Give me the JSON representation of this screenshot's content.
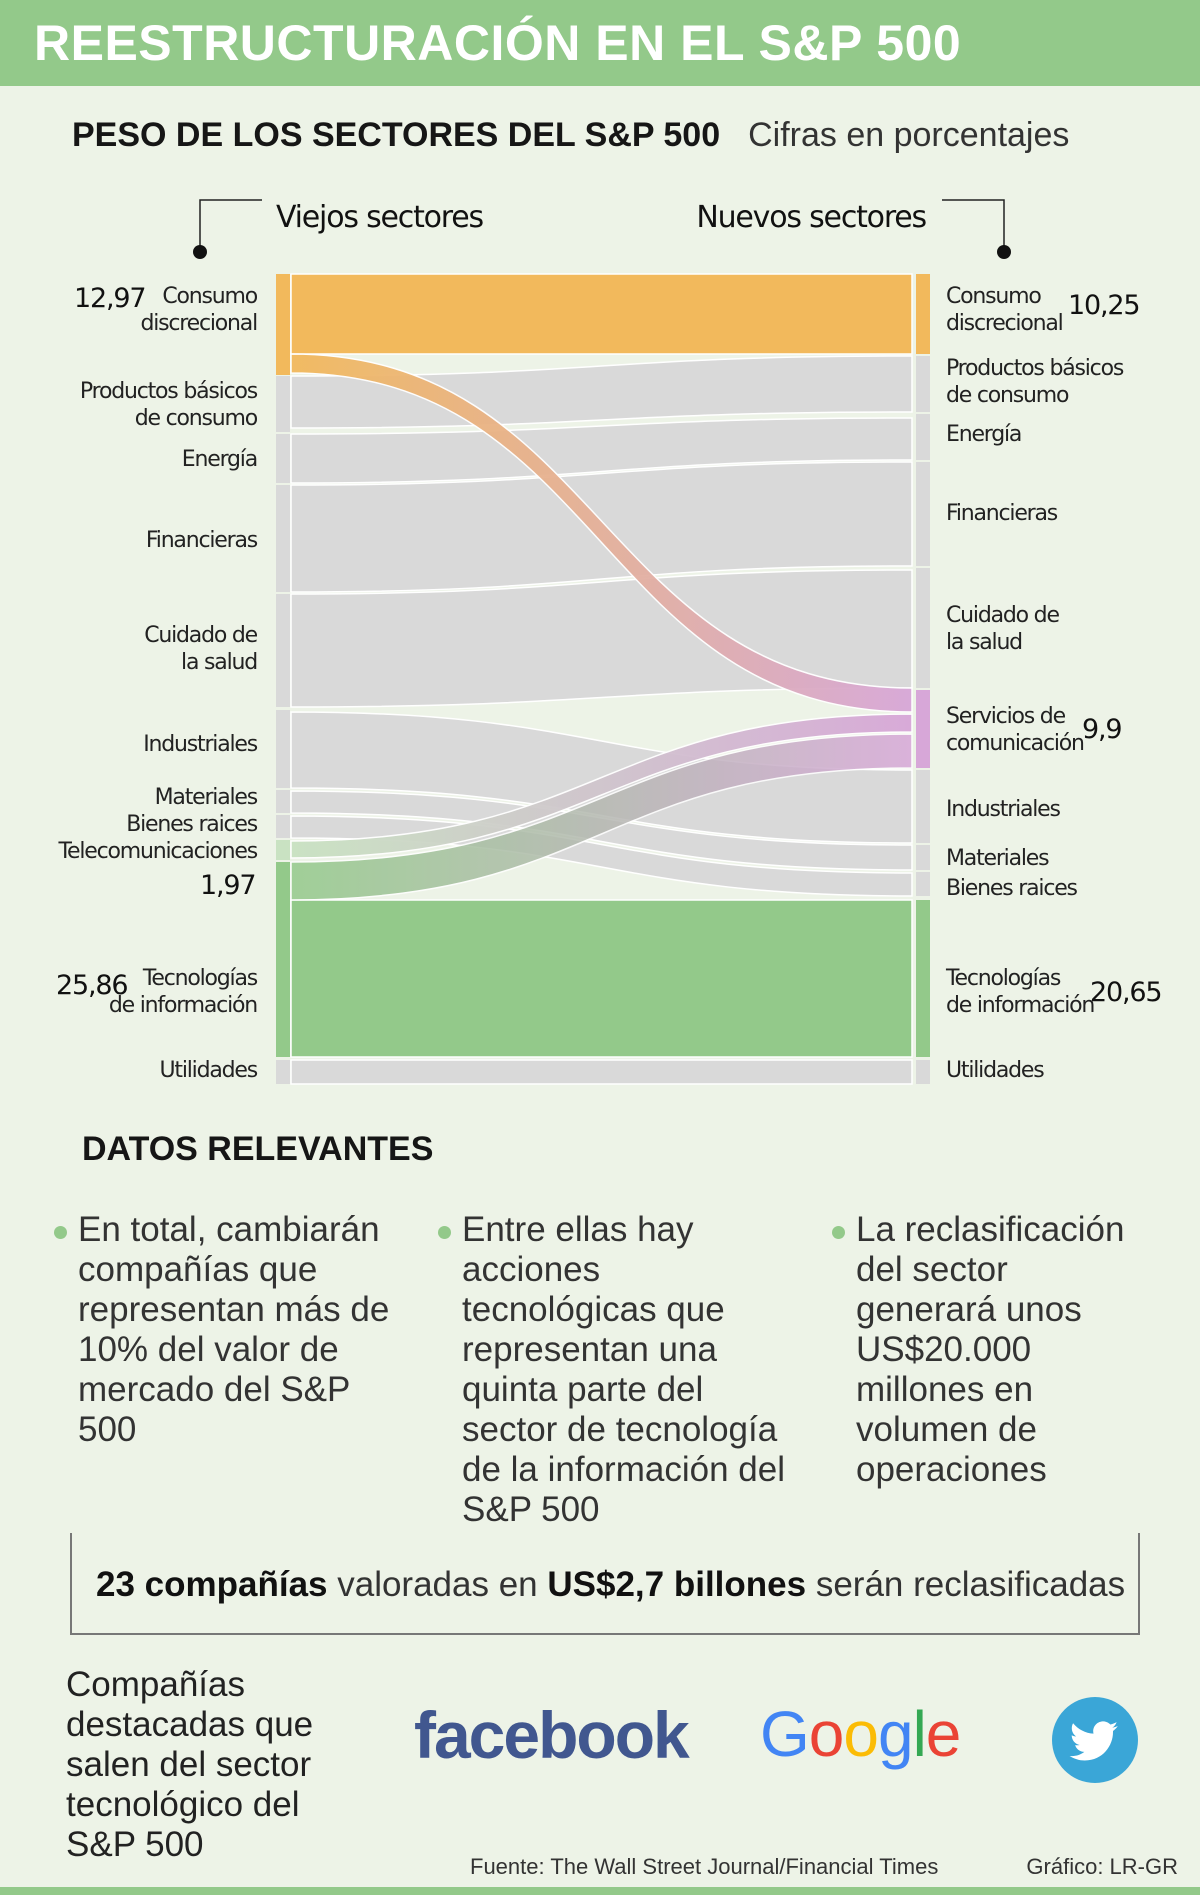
{
  "header": {
    "title": "REESTRUCTURACIÓN EN EL S&P 500"
  },
  "chart_section": {
    "title": "PESO DE LOS SECTORES DEL S&P 500",
    "unit": "Cifras en porcentajes"
  },
  "chart_data": {
    "type": "sankey",
    "left_header": "Viejos sectores",
    "right_header": "Nuevos sectores",
    "old_sectors": [
      {
        "name": "Consumo discrecional",
        "value": 12.97
      },
      {
        "name": "Productos básicos de consumo",
        "value": null
      },
      {
        "name": "Energía",
        "value": null
      },
      {
        "name": "Financieras",
        "value": null
      },
      {
        "name": "Cuidado de la salud",
        "value": null
      },
      {
        "name": "Industriales",
        "value": null
      },
      {
        "name": "Materiales",
        "value": null
      },
      {
        "name": "Bienes raices",
        "value": null
      },
      {
        "name": "Telecomunicaciones",
        "value": 1.97
      },
      {
        "name": "Tecnologías de información",
        "value": 25.86
      },
      {
        "name": "Utilidades",
        "value": null
      }
    ],
    "new_sectors": [
      {
        "name": "Consumo discrecional",
        "value": 10.25
      },
      {
        "name": "Productos básicos de consumo",
        "value": null
      },
      {
        "name": "Energía",
        "value": null
      },
      {
        "name": "Financieras",
        "value": null
      },
      {
        "name": "Cuidado de la salud",
        "value": null
      },
      {
        "name": "Servicios de comunicación",
        "value": 9.9
      },
      {
        "name": "Industriales",
        "value": null
      },
      {
        "name": "Materiales",
        "value": null
      },
      {
        "name": "Bienes raices",
        "value": null
      },
      {
        "name": "Tecnologías de información",
        "value": 20.65
      },
      {
        "name": "Utilidades",
        "value": null
      }
    ],
    "value_labels": {
      "old_consumo": "12,97",
      "old_telecom": "1,97",
      "old_tech": "25,86",
      "new_consumo": "10,25",
      "new_comm": "9,9",
      "new_tech": "20,65"
    },
    "colors": {
      "consumo": "#f2b95c",
      "tecnologia": "#93c98a",
      "telecom": "#c9e2c2",
      "comunicacion": "#d7a7d8",
      "neutral": "#d9d9d9"
    }
  },
  "labels": {
    "left": {
      "consumo": "Consumo\ndiscrecional",
      "basicos": "Productos básicos\nde consumo",
      "energia": "Energía",
      "financieras": "Financieras",
      "salud": "Cuidado de\nla salud",
      "industriales": "Industriales",
      "materiales": "Materiales",
      "bienes": "Bienes raices",
      "telecom": "Telecomunicaciones",
      "tecnologia": "Tecnologías\nde información",
      "utilidades": "Utilidades"
    },
    "right": {
      "consumo": "Consumo\ndiscrecional",
      "basicos": "Productos básicos\nde consumo",
      "energia": "Energía",
      "financieras": "Financieras",
      "salud": "Cuidado de\nla salud",
      "comunicacion": "Servicios de\ncomunicación",
      "industriales": "Industriales",
      "materiales": "Materiales",
      "bienes": "Bienes raices",
      "tecnologia": "Tecnologías\nde información",
      "utilidades": "Utilidades"
    }
  },
  "facts": {
    "title": "DATOS RELEVANTES",
    "items": [
      "En total, cambiarán compañías que representan más de 10% del valor de mercado del S&P 500",
      "Entre ellas hay acciones tecnológicas que representan una quinta parte del sector de tecnología de la información del S&P 500",
      "La reclasificación del sector generará unos US$20.000 millones en volumen de operaciones"
    ]
  },
  "callout": {
    "part1": "23 compañías",
    "part2": " valoradas en ",
    "part3": "US$2,7 billones",
    "part4": " serán reclasificadas"
  },
  "companies": {
    "title": "Compañías destacadas que salen del sector tecnológico del S&P 500",
    "facebook": "facebook",
    "google": [
      "G",
      "o",
      "o",
      "g",
      "l",
      "e"
    ],
    "google_colors": [
      "#4285f4",
      "#ea4335",
      "#fbbc05",
      "#4285f4",
      "#34a853",
      "#ea4335"
    ],
    "twitter_icon": "twitter-bird-icon"
  },
  "footer": {
    "source": "Fuente: The Wall Street Journal/Financial Times",
    "credit": "Gráfico: LR-GR"
  }
}
